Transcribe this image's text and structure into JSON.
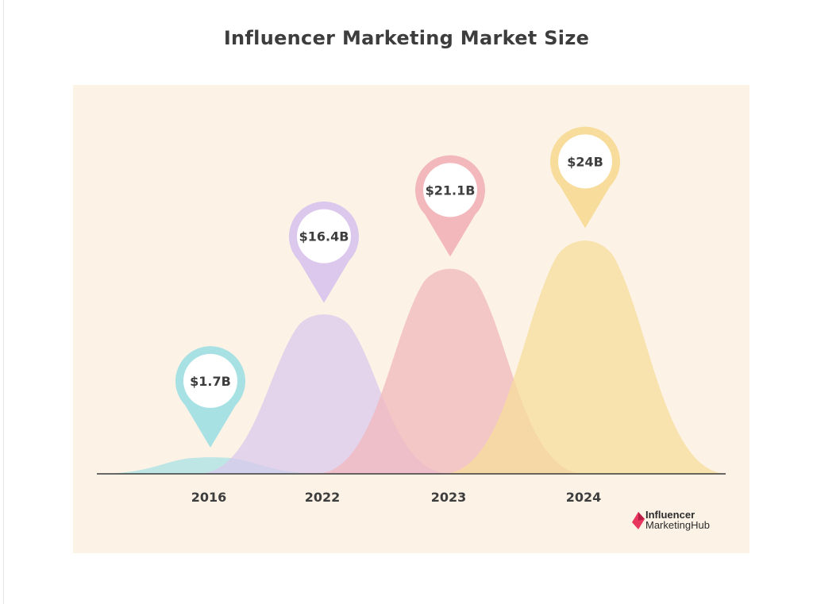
{
  "title": "Influencer Marketing Market Size",
  "chart_data": {
    "type": "area",
    "title": "Influencer Marketing Market Size",
    "categories": [
      "2016",
      "2022",
      "2023",
      "2024"
    ],
    "values": [
      1.7,
      16.4,
      21.1,
      24
    ],
    "value_labels": [
      "$1.7B",
      "$16.4B",
      "$21.1B",
      "$24B"
    ],
    "unit": "USD billions",
    "ylim": [
      0,
      25
    ],
    "colors": [
      "#a8e1e4",
      "#dbc8ec",
      "#f2b8bc",
      "#f7dc9b"
    ],
    "pin_colors": [
      "#a8e1e4",
      "#dbc8ec",
      "#f2b8bc",
      "#f7dc9b"
    ],
    "grid": false,
    "legend": "none"
  },
  "logo": {
    "line1": "Influencer",
    "line2": "MarketingHub",
    "color": "#e8365d"
  },
  "colors": {
    "panel": "#fcf3e6",
    "baseline": "#3a3a3a",
    "text": "#3d3d3d"
  }
}
